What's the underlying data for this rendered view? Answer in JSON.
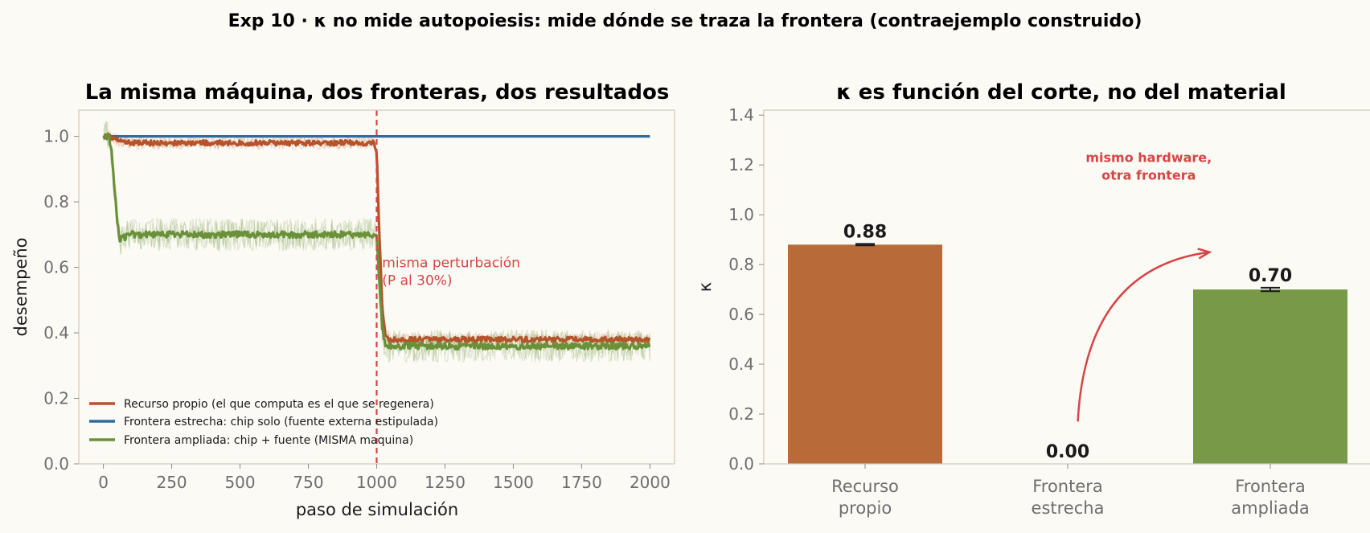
{
  "suptitle": "Exp 10 · κ no mide autopoiesis: mide dónde se traza la frontera (contraejemplo construido)",
  "colors": {
    "background": "#fcfaf5",
    "recurso": "#b86a38",
    "recurso_line": "#b5532a",
    "estrecha": "#2f6aa0",
    "ampliada": "#789a48",
    "ampliada_line": "#6a9139",
    "annotation": "#d64545"
  },
  "chart_data": [
    {
      "type": "line",
      "title": "La misma máquina, dos fronteras, dos resultados",
      "xlabel": "paso de simulación",
      "ylabel": "desempeño",
      "xlim": [
        -90,
        2090
      ],
      "ylim": [
        0.0,
        1.08
      ],
      "xticks": [
        0,
        250,
        500,
        750,
        1000,
        1250,
        1500,
        1750,
        2000
      ],
      "xtick_labels": [
        "0",
        "250",
        "500",
        "750",
        "1000",
        "1250",
        "1500",
        "1750",
        "2000"
      ],
      "yticks": [
        0.0,
        0.2,
        0.4,
        0.6,
        0.8,
        1.0
      ],
      "ytick_labels": [
        "0.0",
        "0.2",
        "0.4",
        "0.6",
        "0.8",
        "1.0"
      ],
      "grid": false,
      "legend_position": "lower-left",
      "vline": {
        "x": 1000,
        "style": "dashed"
      },
      "annotation": {
        "lines": [
          "misma perturbación",
          "(P al 30%)"
        ],
        "x": 1020,
        "y": 0.6
      },
      "series": [
        {
          "name": "Recurso propio (el que computa es el que se regenera)",
          "x": [
            0,
            20,
            40,
            60,
            100,
            200,
            400,
            600,
            800,
            990,
            1000,
            1010,
            1020,
            1030,
            1045,
            1060,
            1100,
            1300,
            1500,
            1700,
            1900,
            2000
          ],
          "y": [
            1.0,
            1.0,
            0.995,
            0.985,
            0.98,
            0.98,
            0.98,
            0.98,
            0.98,
            0.98,
            0.95,
            0.7,
            0.48,
            0.4,
            0.38,
            0.38,
            0.38,
            0.38,
            0.38,
            0.38,
            0.38,
            0.38
          ],
          "noise": 0.008,
          "band": 0.02
        },
        {
          "name": "Frontera estrecha: chip solo (fuente externa estipulada)",
          "x": [
            0,
            2000
          ],
          "y": [
            1.0,
            1.0
          ],
          "noise": 0,
          "band": 0
        },
        {
          "name": "Frontera ampliada: chip + fuente (MISMA maquina)",
          "x": [
            0,
            20,
            30,
            40,
            50,
            60,
            70,
            100,
            200,
            400,
            600,
            800,
            1000,
            1010,
            1020,
            1030,
            1045,
            1060,
            1100,
            1300,
            1500,
            1700,
            1900,
            2000
          ],
          "y": [
            1.0,
            1.0,
            0.95,
            0.85,
            0.75,
            0.68,
            0.69,
            0.7,
            0.7,
            0.7,
            0.7,
            0.7,
            0.7,
            0.55,
            0.42,
            0.37,
            0.36,
            0.36,
            0.36,
            0.36,
            0.36,
            0.36,
            0.36,
            0.36
          ],
          "noise": 0.01,
          "band": 0.05
        }
      ]
    },
    {
      "type": "bar",
      "title": "κ es función del corte, no del material",
      "xlabel": "",
      "ylabel": "κ",
      "ylim": [
        0.0,
        1.42
      ],
      "yticks": [
        0.0,
        0.2,
        0.4,
        0.6,
        0.8,
        1.0,
        1.2,
        1.4
      ],
      "ytick_labels": [
        "0.0",
        "0.2",
        "0.4",
        "0.6",
        "0.8",
        "1.0",
        "1.2",
        "1.4"
      ],
      "grid": false,
      "categories": [
        [
          "Recurso",
          "propio"
        ],
        [
          "Frontera",
          "estrecha"
        ],
        [
          "Frontera",
          "ampliada"
        ]
      ],
      "values": [
        0.88,
        0.0,
        0.7
      ],
      "value_labels": [
        "0.88",
        "0.00",
        "0.70"
      ],
      "errors": [
        0.003,
        0.0,
        0.007
      ],
      "annotation": {
        "lines": [
          "mismo hardware,",
          "otra frontera"
        ],
        "x": 1.4,
        "y": 1.18
      },
      "arrow": {
        "from": [
          1.05,
          0.17
        ],
        "to": [
          1.7,
          0.85
        ]
      }
    }
  ]
}
